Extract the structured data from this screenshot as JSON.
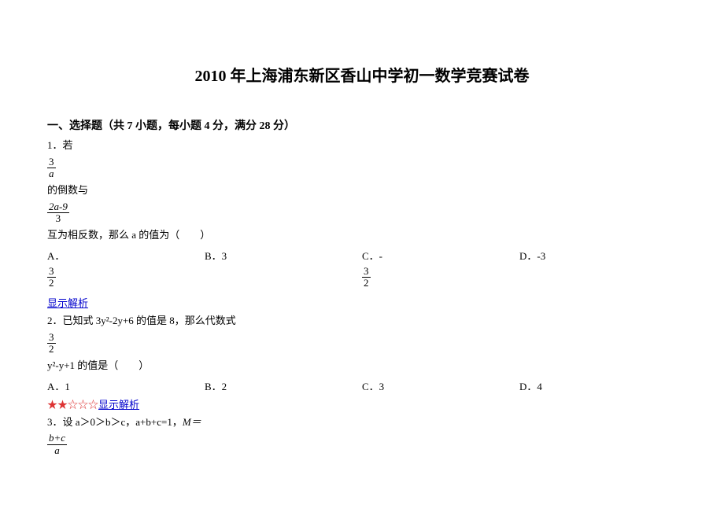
{
  "title": "2010 年上海浦东新区香山中学初一数学竞赛试卷",
  "section": "一、选择题（共 7 小题，每小题 4 分，满分 28 分）",
  "q1": {
    "num_label": "1．",
    "lead1": "若",
    "frac1_num": "3",
    "frac1_den": "a",
    "mid1": "的倒数与",
    "frac2_num": "2a-9",
    "frac2_den": "3",
    "tail": "互为相反数，那么 a 的值为（　　）",
    "optA_prefix": "A．",
    "optA_num": "3",
    "optA_den": "2",
    "optB": "B．3",
    "optC_prefix": "C．-",
    "optC_num": "3",
    "optC_den": "2",
    "optD": "D．-3",
    "explain": "显示解析"
  },
  "q2": {
    "line1": "2．已知式 3y²-2y+6 的值是 8，那么代数式",
    "frac_num": "3",
    "frac_den": "2",
    "line2": "y²-y+1 的值是（　　）",
    "optA": "A．1",
    "optB": "B．2",
    "optC": "C．3",
    "optD": "D．4",
    "stars": "★★☆☆☆",
    "explain": "显示解析"
  },
  "q3": {
    "line1_a": "3．设 a＞0＞b＞c，a+b+c=1，",
    "line1_b": "M＝",
    "frac_num": "b+c",
    "frac_den": "a"
  }
}
